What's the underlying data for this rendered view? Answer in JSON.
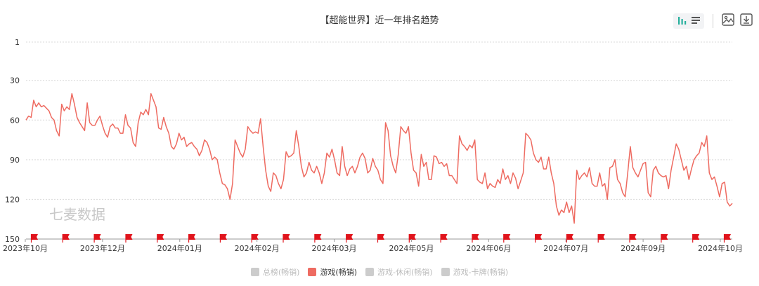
{
  "title": "【超能世界】近一年排名趋势",
  "watermark": "七麦数据",
  "colors": {
    "line": "#ee6b61",
    "flag": "#e0141c",
    "grid": "#d9d9d9",
    "axis_text": "#333333",
    "toolbar_active": "#27b09d",
    "toolbar_icon": "#555555",
    "legend_inactive": "#cccccc",
    "legend_inactive_text": "#bbbbbb"
  },
  "toolbar": {
    "icons": [
      "bar-chart-icon",
      "list-icon",
      "image-icon",
      "download-icon"
    ]
  },
  "legend": [
    {
      "label": "总榜(畅销)",
      "active": false
    },
    {
      "label": "游戏(畅销)",
      "active": true
    },
    {
      "label": "游戏-休闲(畅销)",
      "active": false
    },
    {
      "label": "游戏-卡牌(畅销)",
      "active": false
    }
  ],
  "chart_data": {
    "type": "line",
    "title": "【超能世界】近一年排名趋势",
    "y_inverted": true,
    "ylim": [
      1,
      150
    ],
    "y_ticks": [
      "1",
      "30",
      "60",
      "90",
      "120",
      "150"
    ],
    "x_tick_labels": [
      "2023年10月",
      "2023年12月",
      "2024年01月",
      "2024年02月",
      "2024年03月",
      "2024年05月",
      "2024年06月",
      "2024年07月",
      "2024年09月",
      "2024年10月"
    ],
    "grid": true,
    "legend_position": "bottom",
    "series": [
      {
        "name": "游戏(畅销)",
        "values": [
          60,
          57,
          58,
          45,
          50,
          47,
          50,
          49,
          51,
          53,
          58,
          60,
          68,
          72,
          48,
          53,
          50,
          52,
          40,
          48,
          58,
          62,
          65,
          68,
          47,
          62,
          64,
          64,
          60,
          57,
          64,
          70,
          73,
          65,
          63,
          66,
          66,
          70,
          70,
          56,
          64,
          66,
          77,
          80,
          62,
          54,
          56,
          52,
          56,
          40,
          45,
          50,
          66,
          67,
          58,
          65,
          70,
          80,
          82,
          78,
          70,
          75,
          73,
          80,
          78,
          77,
          80,
          82,
          87,
          83,
          75,
          77,
          82,
          90,
          88,
          90,
          100,
          108,
          109,
          112,
          120,
          108,
          75,
          80,
          85,
          88,
          82,
          65,
          68,
          70,
          69,
          70,
          59,
          80,
          98,
          110,
          114,
          100,
          102,
          108,
          112,
          105,
          84,
          88,
          87,
          85,
          68,
          80,
          95,
          103,
          100,
          92,
          98,
          100,
          95,
          100,
          108,
          100,
          85,
          88,
          82,
          90,
          100,
          102,
          80,
          95,
          102,
          97,
          95,
          100,
          95,
          88,
          85,
          89,
          100,
          98,
          89,
          95,
          98,
          105,
          108,
          62,
          68,
          87,
          95,
          100,
          86,
          65,
          68,
          70,
          65,
          85,
          98,
          100,
          110,
          86,
          95,
          92,
          105,
          105,
          87,
          88,
          93,
          92,
          95,
          93,
          102,
          102,
          105,
          108,
          72,
          78,
          80,
          83,
          79,
          81,
          75,
          105,
          107,
          108,
          100,
          112,
          108,
          110,
          111,
          105,
          108,
          97,
          105,
          102,
          108,
          100,
          104,
          112,
          106,
          100,
          70,
          72,
          75,
          85,
          90,
          92,
          88,
          97,
          97,
          88,
          100,
          108,
          125,
          132,
          128,
          130,
          122,
          130,
          125,
          138,
          98,
          105,
          102,
          100,
          103,
          96,
          108,
          110,
          110,
          100,
          110,
          108,
          120,
          96,
          95,
          90,
          105,
          108,
          115,
          118,
          100,
          80,
          96,
          100,
          103,
          98,
          93,
          92,
          115,
          118,
          98,
          95,
          100,
          102,
          103,
          102,
          112,
          98,
          88,
          78,
          82,
          90,
          98,
          95,
          105,
          97,
          90,
          87,
          85,
          77,
          80,
          72,
          100,
          105,
          103,
          110,
          118,
          108,
          107,
          122,
          125,
          123
        ],
        "color": "#ee6b61"
      }
    ],
    "event_flag_count": 23
  }
}
